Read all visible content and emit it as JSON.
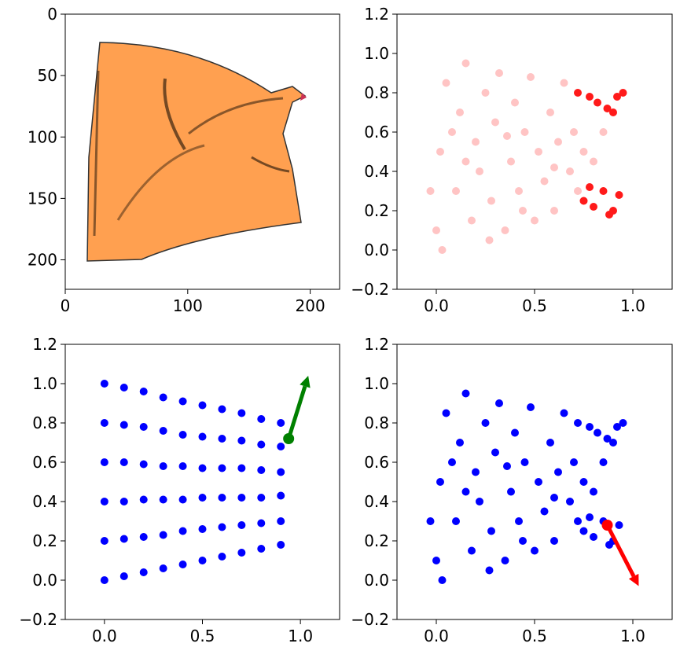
{
  "chart_data": [
    {
      "type": "image",
      "xlim": [
        0,
        224
      ],
      "ylim": [
        224,
        0
      ],
      "xticks": [
        0,
        100,
        200
      ],
      "yticks": [
        0,
        50,
        100,
        150,
        200
      ]
    },
    {
      "type": "scatter",
      "xlim": [
        -0.2,
        1.2
      ],
      "ylim": [
        -0.2,
        1.2
      ],
      "xticks": [
        {
          "value": 0,
          "label": "0.0"
        },
        0.5,
        {
          "value": 1,
          "label": "1.0"
        }
      ],
      "yticks": [
        {
          "value": -0.2,
          "label": "−0.2"
        },
        {
          "value": 0,
          "label": "0.0"
        },
        0.2,
        0.4,
        0.6,
        0.8,
        {
          "value": 1,
          "label": "1.0"
        },
        1.2
      ],
      "series": [
        {
          "color": "#ffc4c4",
          "x": [
            0.0,
            0.02,
            0.05,
            0.1,
            0.12,
            0.15,
            0.18,
            0.2,
            0.22,
            0.25,
            0.28,
            0.3,
            0.32,
            0.35,
            0.38,
            0.4,
            0.42,
            0.45,
            0.48,
            0.5,
            0.52,
            0.55,
            0.58,
            0.6,
            0.62,
            0.65,
            0.68,
            0.7,
            0.72,
            0.75,
            -0.03,
            0.08,
            0.27,
            0.44,
            0.6,
            0.8,
            0.85,
            0.03,
            0.15,
            0.36
          ],
          "y": [
            0.1,
            0.5,
            0.85,
            0.3,
            0.7,
            0.95,
            0.15,
            0.55,
            0.4,
            0.8,
            0.25,
            0.65,
            0.9,
            0.1,
            0.45,
            0.75,
            0.3,
            0.6,
            0.88,
            0.15,
            0.5,
            0.35,
            0.7,
            0.2,
            0.55,
            0.85,
            0.4,
            0.6,
            0.3,
            0.5,
            0.3,
            0.6,
            0.05,
            0.2,
            0.42,
            0.45,
            0.6,
            0.0,
            0.45,
            0.58
          ]
        },
        {
          "color": "#ff1a1a",
          "x": [
            0.72,
            0.78,
            0.82,
            0.87,
            0.92,
            0.95,
            0.9,
            0.75,
            0.8,
            0.85,
            0.9,
            0.93,
            0.78,
            0.88
          ],
          "y": [
            0.8,
            0.78,
            0.75,
            0.72,
            0.78,
            0.8,
            0.7,
            0.25,
            0.22,
            0.3,
            0.2,
            0.28,
            0.32,
            0.18
          ]
        }
      ]
    },
    {
      "type": "scatter",
      "xlim": [
        -0.2,
        1.2
      ],
      "ylim": [
        -0.2,
        1.2
      ],
      "xticks": [
        {
          "value": 0,
          "label": "0.0"
        },
        0.5,
        {
          "value": 1,
          "label": "1.0"
        }
      ],
      "yticks": [
        {
          "value": -0.2,
          "label": "−0.2"
        },
        {
          "value": 0,
          "label": "0.0"
        },
        0.2,
        0.4,
        0.6,
        0.8,
        {
          "value": 1,
          "label": "1.0"
        },
        1.2
      ],
      "series": [
        {
          "color": "#0000ff",
          "x": [
            0,
            0,
            0,
            0,
            0,
            0,
            0.1,
            0.1,
            0.1,
            0.1,
            0.1,
            0.1,
            0.2,
            0.2,
            0.2,
            0.2,
            0.2,
            0.2,
            0.3,
            0.3,
            0.3,
            0.3,
            0.3,
            0.3,
            0.4,
            0.4,
            0.4,
            0.4,
            0.4,
            0.4,
            0.5,
            0.5,
            0.5,
            0.5,
            0.5,
            0.5,
            0.6,
            0.6,
            0.6,
            0.6,
            0.6,
            0.6,
            0.7,
            0.7,
            0.7,
            0.7,
            0.7,
            0.7,
            0.8,
            0.8,
            0.8,
            0.8,
            0.8,
            0.8,
            0.9,
            0.9,
            0.9,
            0.9,
            0.9,
            0.9
          ],
          "y": [
            0,
            0.2,
            0.4,
            0.6,
            0.8,
            1.0,
            0.02,
            0.21,
            0.4,
            0.6,
            0.79,
            0.98,
            0.04,
            0.22,
            0.41,
            0.59,
            0.78,
            0.96,
            0.06,
            0.23,
            0.41,
            0.58,
            0.76,
            0.93,
            0.08,
            0.25,
            0.41,
            0.58,
            0.74,
            0.91,
            0.1,
            0.26,
            0.42,
            0.57,
            0.73,
            0.89,
            0.12,
            0.27,
            0.42,
            0.57,
            0.72,
            0.87,
            0.14,
            0.28,
            0.42,
            0.57,
            0.71,
            0.85,
            0.16,
            0.29,
            0.42,
            0.56,
            0.69,
            0.82,
            0.18,
            0.3,
            0.43,
            0.55,
            0.68,
            0.8
          ]
        }
      ],
      "arrows": [
        {
          "color": "#008000",
          "x": [
            0.94,
            1.04
          ],
          "y": [
            0.72,
            1.04
          ]
        }
      ]
    },
    {
      "type": "scatter",
      "xlim": [
        -0.2,
        1.2
      ],
      "ylim": [
        -0.2,
        1.2
      ],
      "xticks": [
        {
          "value": 0,
          "label": "0.0"
        },
        0.5,
        {
          "value": 1,
          "label": "1.0"
        }
      ],
      "yticks": [
        {
          "value": -0.2,
          "label": "−0.2"
        },
        {
          "value": 0,
          "label": "0.0"
        },
        0.2,
        0.4,
        0.6,
        0.8,
        {
          "value": 1,
          "label": "1.0"
        },
        1.2
      ],
      "series": [
        {
          "color": "#0000ff",
          "x": [
            0.0,
            0.02,
            0.05,
            0.1,
            0.12,
            0.15,
            0.18,
            0.2,
            0.22,
            0.25,
            0.28,
            0.3,
            0.32,
            0.35,
            0.38,
            0.4,
            0.42,
            0.45,
            0.48,
            0.5,
            0.52,
            0.55,
            0.58,
            0.6,
            0.62,
            0.65,
            0.68,
            0.7,
            0.72,
            0.75,
            -0.03,
            0.08,
            0.27,
            0.44,
            0.6,
            0.8,
            0.85,
            0.03,
            0.15,
            0.36,
            0.72,
            0.78,
            0.82,
            0.87,
            0.92,
            0.95,
            0.9,
            0.75,
            0.8,
            0.85,
            0.9,
            0.93,
            0.78,
            0.88
          ],
          "y": [
            0.1,
            0.5,
            0.85,
            0.3,
            0.7,
            0.95,
            0.15,
            0.55,
            0.4,
            0.8,
            0.25,
            0.65,
            0.9,
            0.1,
            0.45,
            0.75,
            0.3,
            0.6,
            0.88,
            0.15,
            0.5,
            0.35,
            0.7,
            0.2,
            0.55,
            0.85,
            0.4,
            0.6,
            0.3,
            0.5,
            0.3,
            0.6,
            0.05,
            0.2,
            0.42,
            0.45,
            0.6,
            0.0,
            0.45,
            0.58,
            0.8,
            0.78,
            0.75,
            0.72,
            0.78,
            0.8,
            0.7,
            0.25,
            0.22,
            0.3,
            0.2,
            0.28,
            0.32,
            0.18
          ]
        }
      ],
      "arrows": [
        {
          "color": "#ff0000",
          "x": [
            0.87,
            1.03
          ],
          "y": [
            0.28,
            -0.03
          ]
        }
      ]
    }
  ]
}
